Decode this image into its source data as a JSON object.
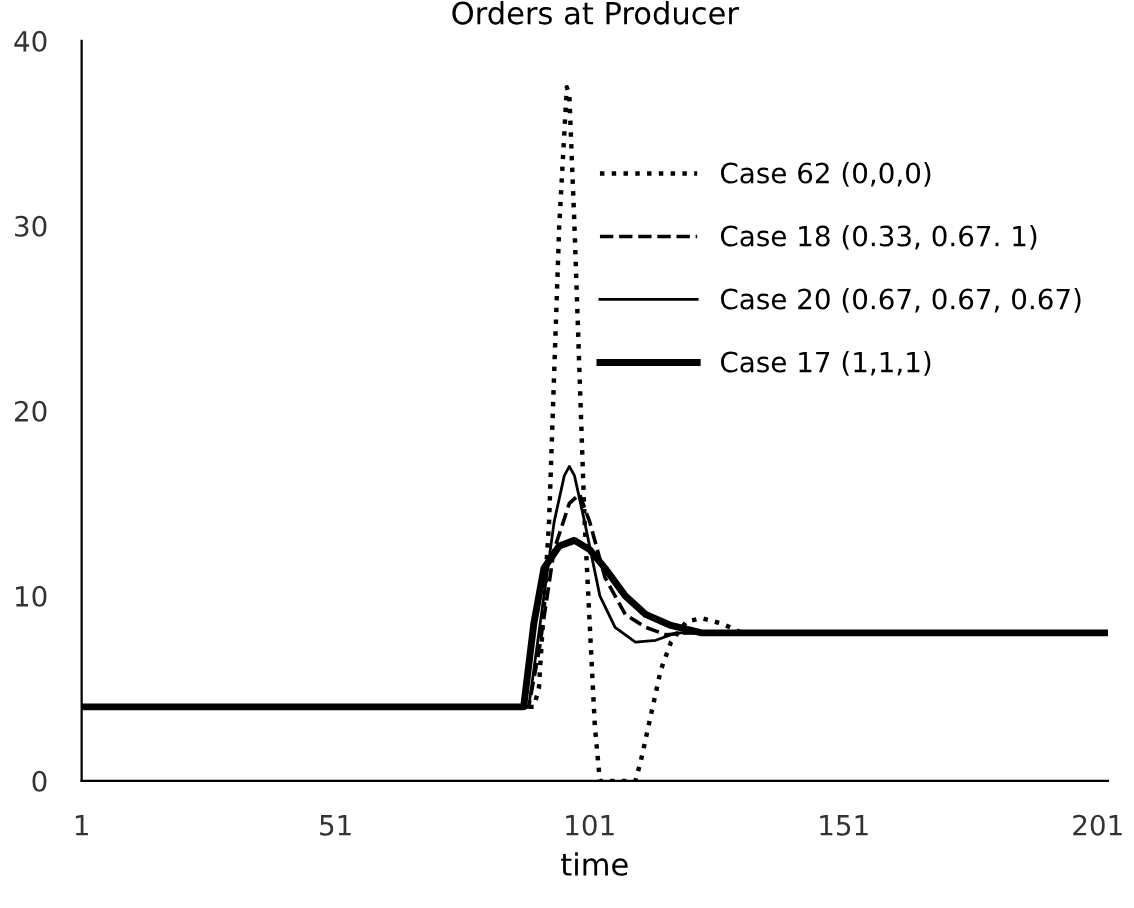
{
  "chart_data": {
    "type": "line",
    "title": "Orders at Producer",
    "xlabel": "time",
    "xlim": [
      1,
      203
    ],
    "xticks": [
      1,
      51,
      101,
      151,
      201
    ],
    "ylim": [
      0,
      40
    ],
    "yticks": [
      0,
      10,
      20,
      30,
      40
    ],
    "grid": false,
    "legend": "top right",
    "series": [
      {
        "name": "Case 62 (0,0,0)",
        "color": "#000000",
        "line_style": "dotted",
        "x": [
          1,
          90,
          91,
          93,
          95,
          96.5,
          97,
          98,
          100,
          102,
          103,
          110,
          111,
          113,
          115,
          117,
          120,
          123,
          127,
          131,
          203
        ],
        "values": [
          4,
          4,
          5,
          14,
          30,
          37.5,
          37,
          30,
          14,
          3,
          0,
          0,
          1,
          3.5,
          6,
          7.5,
          8.6,
          8.8,
          8.5,
          8,
          8
        ]
      },
      {
        "name": "Case 18 (0.33, 0.67. 1)",
        "color": "#000000",
        "line_style": "dashed",
        "x": [
          1,
          89,
          91,
          94,
          97,
          99,
          101,
          104,
          108,
          112,
          116,
          120,
          203
        ],
        "values": [
          4,
          4,
          7,
          12.5,
          15,
          15.5,
          14,
          11,
          9,
          8.3,
          7.9,
          8,
          8
        ]
      },
      {
        "name": "Case 20 (0.67, 0.67, 0.67)",
        "color": "#000000",
        "line_style": "solid",
        "x": [
          1,
          89,
          91,
          94,
          96,
          97,
          98,
          100,
          103,
          106,
          110,
          114,
          118,
          203
        ],
        "values": [
          4,
          4,
          8,
          14,
          16.5,
          17,
          16.5,
          14,
          10,
          8.3,
          7.5,
          7.6,
          8,
          8
        ]
      },
      {
        "name": "Case 17 (1,1,1)",
        "color": "#000000",
        "line_style": "solid",
        "x": [
          1,
          88,
          90,
          92,
          95,
          98,
          101,
          104,
          108,
          112,
          117,
          123,
          203
        ],
        "values": [
          4,
          4,
          8.5,
          11.5,
          12.7,
          13,
          12.5,
          11.5,
          10,
          9,
          8.4,
          8,
          8
        ]
      }
    ]
  }
}
